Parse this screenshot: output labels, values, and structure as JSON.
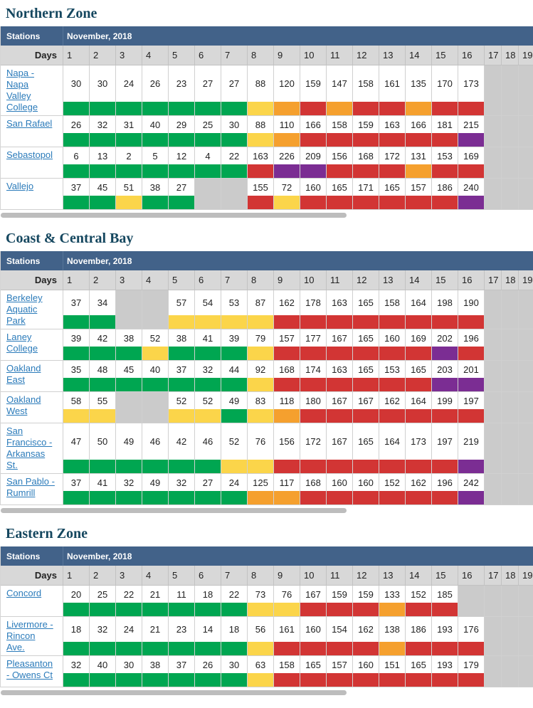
{
  "ui": {
    "stations_label": "Stations",
    "month_label": "November, 2018",
    "days_label": "Days"
  },
  "day_headers": [
    "1",
    "2",
    "3",
    "4",
    "5",
    "6",
    "7",
    "8",
    "9",
    "10",
    "11",
    "12",
    "13",
    "14",
    "15",
    "16",
    "17",
    "18",
    "19"
  ],
  "aqi_colors": {
    "green": "#00A651",
    "yellow": "#FBD54A",
    "orange": "#F5A02E",
    "red": "#D23534",
    "purple": "#7B2D93",
    "nodata": "#CBCBCB"
  },
  "aqi_thresholds": [
    [
      50,
      "green"
    ],
    [
      100,
      "yellow"
    ],
    [
      150,
      "orange"
    ],
    [
      200,
      "red"
    ],
    [
      500,
      "purple"
    ]
  ],
  "sections": [
    {
      "title": "Northern Zone",
      "rows": [
        {
          "station": "Napa - Napa Valley College",
          "values": [
            30,
            30,
            24,
            26,
            23,
            27,
            27,
            88,
            120,
            159,
            147,
            158,
            161,
            135,
            170,
            173,
            null,
            null,
            null
          ]
        },
        {
          "station": "San Rafael",
          "values": [
            26,
            32,
            31,
            40,
            29,
            25,
            30,
            88,
            110,
            166,
            158,
            159,
            163,
            166,
            181,
            215,
            null,
            null,
            null
          ]
        },
        {
          "station": "Sebastopol",
          "values": [
            6,
            13,
            2,
            5,
            12,
            4,
            22,
            163,
            226,
            209,
            156,
            168,
            172,
            131,
            153,
            169,
            null,
            null,
            null
          ]
        },
        {
          "station": "Vallejo",
          "values": [
            37,
            45,
            51,
            38,
            27,
            null,
            null,
            155,
            72,
            160,
            165,
            171,
            165,
            157,
            186,
            240,
            null,
            null,
            null
          ]
        }
      ]
    },
    {
      "title": "Coast & Central Bay",
      "rows": [
        {
          "station": "Berkeley Aquatic Park",
          "values": [
            37,
            34,
            null,
            null,
            57,
            54,
            53,
            87,
            162,
            178,
            163,
            165,
            158,
            164,
            198,
            190,
            null,
            null,
            null
          ]
        },
        {
          "station": "Laney College",
          "values": [
            39,
            42,
            38,
            52,
            38,
            41,
            39,
            79,
            157,
            177,
            167,
            165,
            160,
            169,
            202,
            196,
            null,
            null,
            null
          ]
        },
        {
          "station": "Oakland East",
          "values": [
            35,
            48,
            45,
            40,
            37,
            32,
            44,
            92,
            168,
            174,
            163,
            165,
            153,
            165,
            203,
            201,
            null,
            null,
            null
          ]
        },
        {
          "station": "Oakland West",
          "values": [
            58,
            55,
            null,
            null,
            52,
            52,
            49,
            83,
            118,
            180,
            167,
            167,
            162,
            164,
            199,
            197,
            null,
            null,
            null
          ]
        },
        {
          "station": "San Francisco - Arkansas St.",
          "values": [
            47,
            50,
            49,
            46,
            42,
            46,
            52,
            76,
            156,
            172,
            167,
            165,
            164,
            173,
            197,
            219,
            null,
            null,
            null
          ]
        },
        {
          "station": "San Pablo - Rumrill",
          "values": [
            37,
            41,
            32,
            49,
            32,
            27,
            24,
            125,
            117,
            168,
            160,
            160,
            152,
            162,
            196,
            242,
            null,
            null,
            null
          ]
        }
      ]
    },
    {
      "title": "Eastern Zone",
      "rows": [
        {
          "station": "Concord",
          "values": [
            20,
            25,
            22,
            21,
            11,
            18,
            22,
            73,
            76,
            167,
            159,
            159,
            133,
            152,
            185,
            null,
            null,
            null,
            null
          ]
        },
        {
          "station": "Livermore - Rincon Ave.",
          "values": [
            18,
            32,
            24,
            21,
            23,
            14,
            18,
            56,
            161,
            160,
            154,
            162,
            138,
            186,
            193,
            176,
            null,
            null,
            null
          ]
        },
        {
          "station": "Pleasanton - Owens Ct",
          "values": [
            32,
            40,
            30,
            38,
            37,
            26,
            30,
            63,
            158,
            165,
            157,
            160,
            151,
            165,
            193,
            179,
            null,
            null,
            null
          ]
        }
      ]
    }
  ]
}
